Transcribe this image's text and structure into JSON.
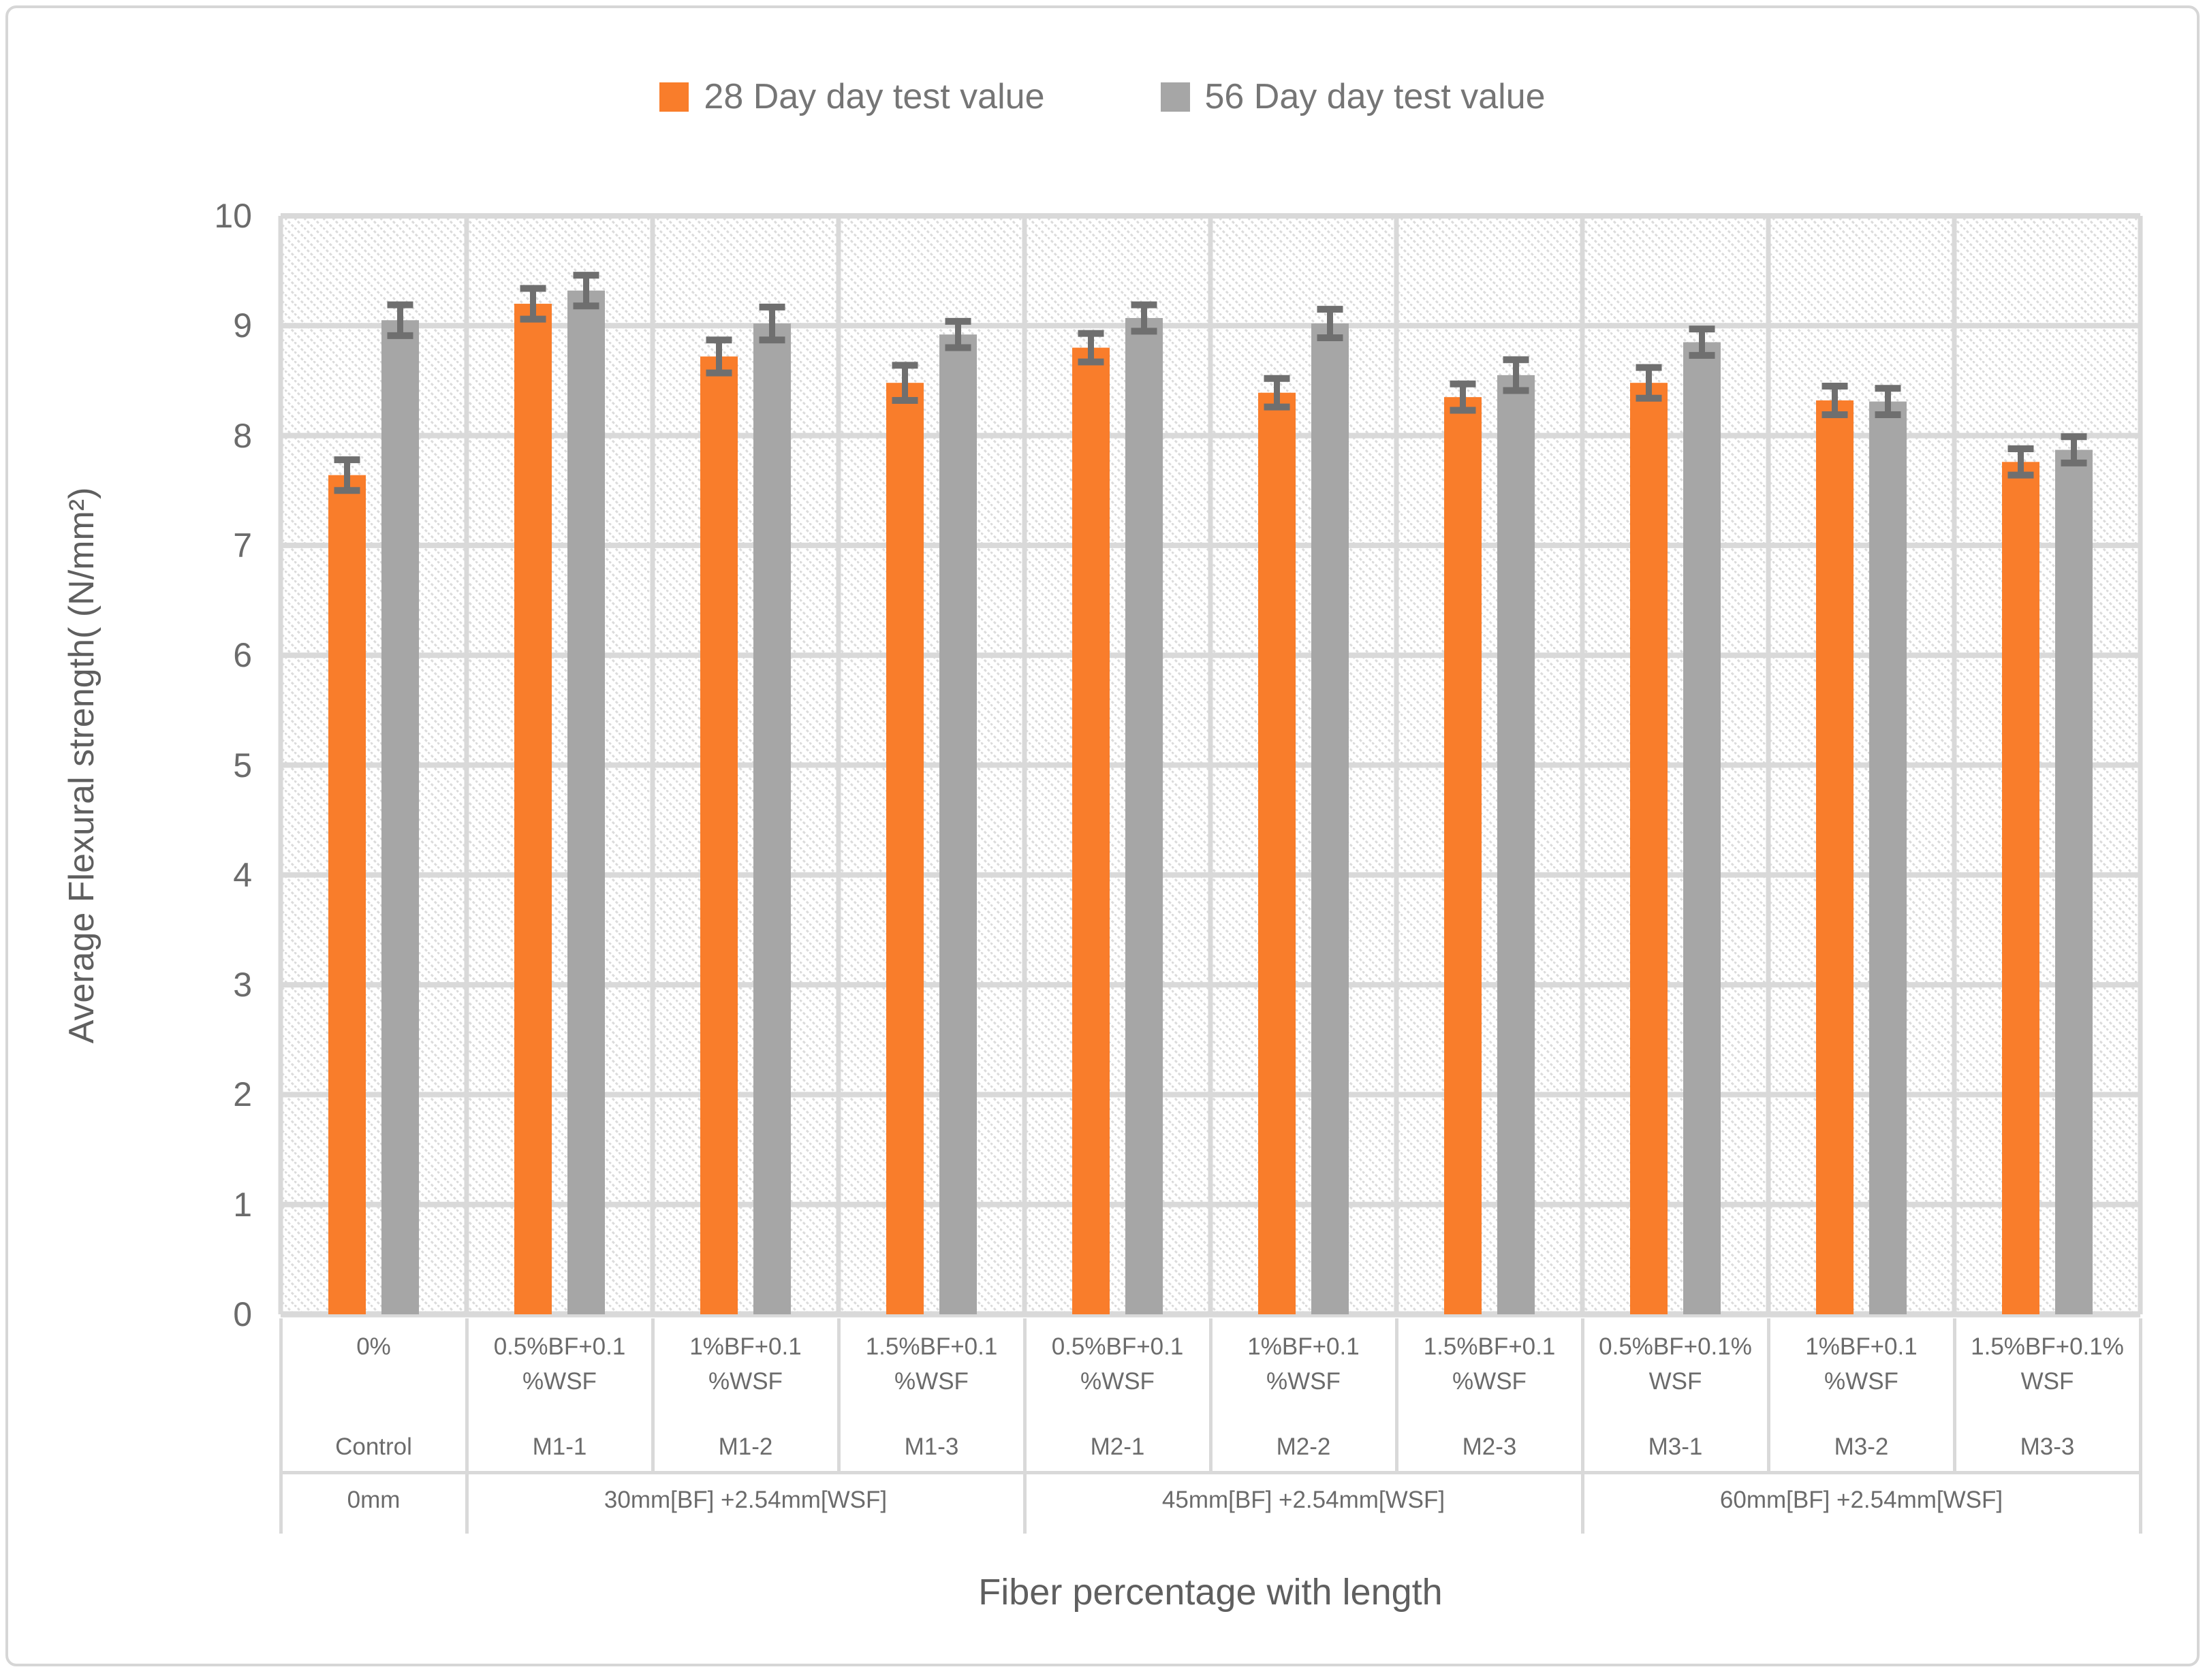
{
  "chart_data": {
    "type": "bar",
    "title": "",
    "xlabel": "Fiber percentage with length",
    "ylabel": "Average Flexural strength( (N/mm²)",
    "ylim": [
      0,
      10
    ],
    "ytick_step": 1,
    "grid": true,
    "legend_position": "top-center",
    "categories": [
      "Control",
      "M1-1",
      "M1-2",
      "M1-3",
      "M2-1",
      "M2-2",
      "M2-3",
      "M3-1",
      "M3-2",
      "M3-3"
    ],
    "category_top_labels": [
      [
        "0%"
      ],
      [
        "0.5%BF+0.1",
        "%WSF"
      ],
      [
        "1%BF+0.1",
        "%WSF"
      ],
      [
        "1.5%BF+0.1",
        "%WSF"
      ],
      [
        "0.5%BF+0.1",
        "%WSF"
      ],
      [
        "1%BF+0.1",
        "%WSF"
      ],
      [
        "1.5%BF+0.1",
        "%WSF"
      ],
      [
        "0.5%BF+0.1%",
        "WSF"
      ],
      [
        "1%BF+0.1",
        "%WSF"
      ],
      [
        "1.5%BF+0.1%",
        "WSF"
      ]
    ],
    "group_labels": [
      {
        "label": "0mm",
        "span": [
          0,
          0
        ]
      },
      {
        "label": "30mm[BF] +2.54mm[WSF]",
        "span": [
          1,
          3
        ]
      },
      {
        "label": "45mm[BF] +2.54mm[WSF]",
        "span": [
          4,
          6
        ]
      },
      {
        "label": "60mm[BF] +2.54mm[WSF]",
        "span": [
          7,
          9
        ]
      }
    ],
    "series": [
      {
        "name": "28 Day day test value",
        "color": "#F97D2B",
        "values": [
          7.64,
          9.2,
          8.72,
          8.48,
          8.8,
          8.39,
          8.35,
          8.48,
          8.32,
          7.76
        ],
        "errors": [
          0.14,
          0.14,
          0.15,
          0.16,
          0.13,
          0.13,
          0.12,
          0.14,
          0.13,
          0.12
        ]
      },
      {
        "name": "56 Day day test value",
        "color": "#A6A6A6",
        "values": [
          9.05,
          9.32,
          9.02,
          8.92,
          9.07,
          9.02,
          8.55,
          8.85,
          8.31,
          7.87
        ],
        "errors": [
          0.14,
          0.14,
          0.15,
          0.12,
          0.12,
          0.13,
          0.14,
          0.12,
          0.12,
          0.12
        ]
      }
    ],
    "error_bar_color": "#6F6F6F",
    "gridline_color": "#D9D9D9",
    "plot_hatch_color": "#DBDBDB",
    "text_color": "#6B6B6B"
  }
}
